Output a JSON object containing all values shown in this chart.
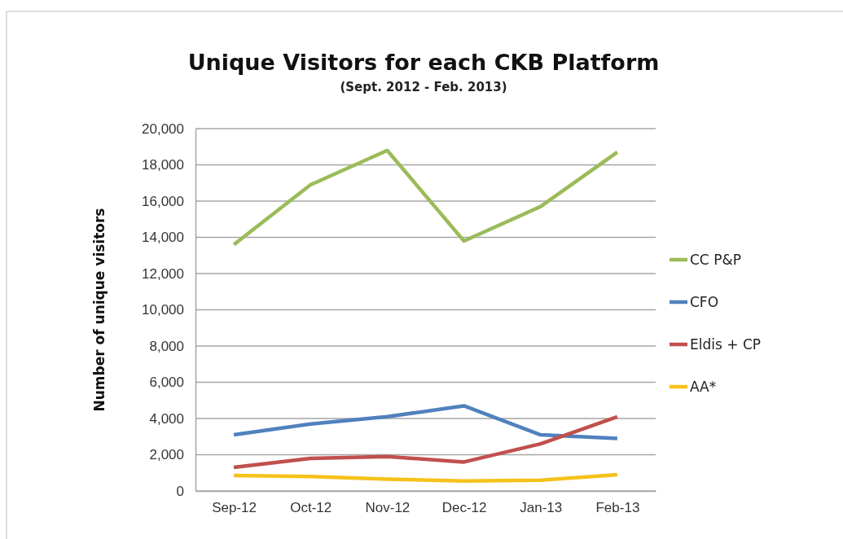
{
  "chart_data": {
    "type": "line",
    "title": "Unique Visitors for each CKB Platform",
    "subtitle": "(Sept. 2012 - Feb. 2013)",
    "ylabel": "Number of unique visitors",
    "categories": [
      "Sep-12",
      "Oct-12",
      "Nov-12",
      "Dec-12",
      "Jan-13",
      "Feb-13"
    ],
    "series": [
      {
        "name": "CC P&P",
        "color": "#9bbb59",
        "values": [
          13600,
          16900,
          18800,
          13800,
          15700,
          18700
        ]
      },
      {
        "name": "CFO",
        "color": "#4f81bd",
        "values": [
          3100,
          3700,
          4100,
          4700,
          3100,
          2900
        ]
      },
      {
        "name": "Eldis + CP",
        "color": "#c0504d",
        "values": [
          1300,
          1800,
          1900,
          1600,
          2600,
          4100
        ]
      },
      {
        "name": "AA*",
        "color": "#f5c21b",
        "values": [
          850,
          800,
          650,
          550,
          600,
          900
        ]
      }
    ],
    "ylim": [
      0,
      20000
    ],
    "yticks": [
      {
        "value": 0,
        "label": "0"
      },
      {
        "value": 2000,
        "label": "2,000"
      },
      {
        "value": 4000,
        "label": "4,000"
      },
      {
        "value": 6000,
        "label": "6,000"
      },
      {
        "value": 8000,
        "label": "8,000"
      },
      {
        "value": 10000,
        "label": "10,000"
      },
      {
        "value": 12000,
        "label": "12,000"
      },
      {
        "value": 14000,
        "label": "14,000"
      },
      {
        "value": 16000,
        "label": "16,000"
      },
      {
        "value": 18000,
        "label": "18,000"
      },
      {
        "value": 20000,
        "label": "20,000"
      }
    ],
    "grid": "y",
    "legend": "right",
    "marker": "none",
    "line_style": "solid"
  }
}
